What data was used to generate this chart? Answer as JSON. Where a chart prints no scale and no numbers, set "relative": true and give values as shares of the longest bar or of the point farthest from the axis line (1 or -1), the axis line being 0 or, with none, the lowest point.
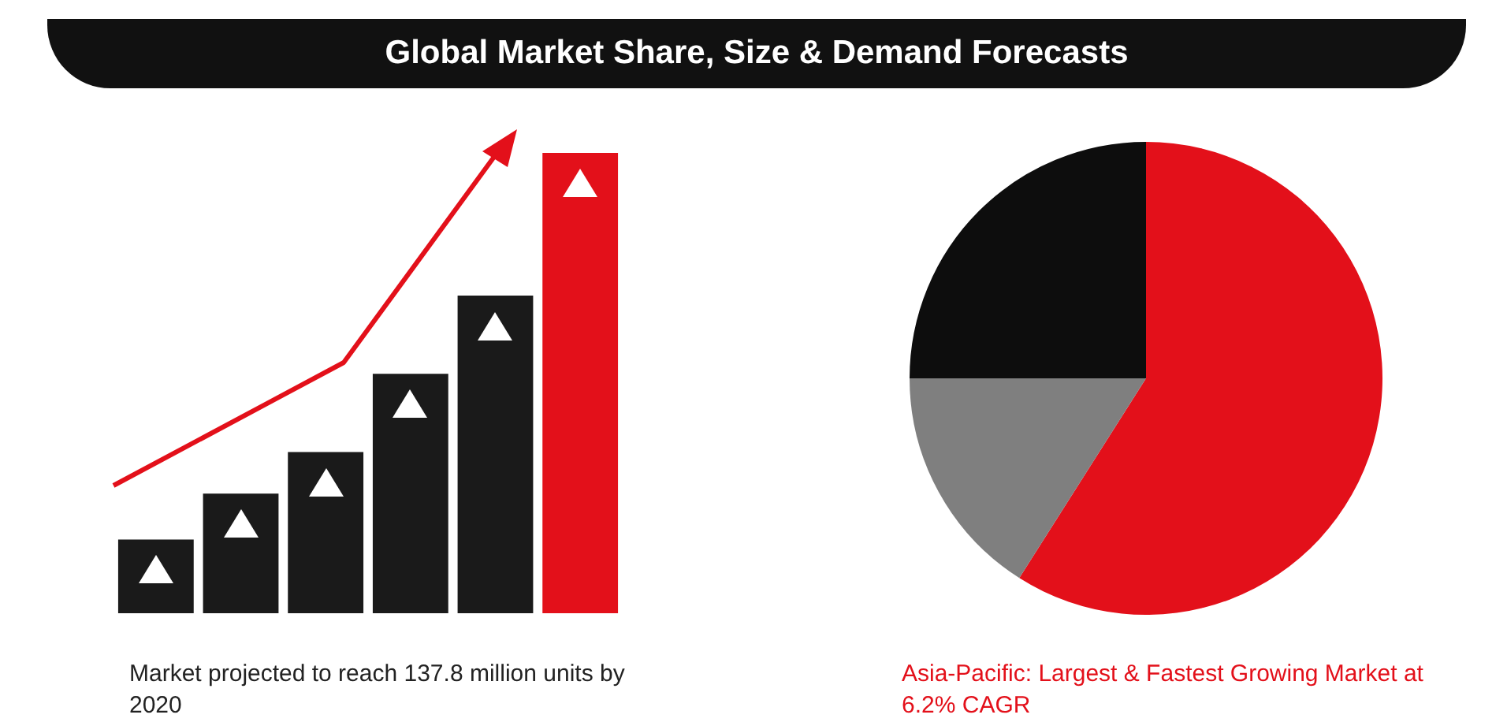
{
  "chart_data": [
    {
      "type": "bar",
      "title": "Global Market Share, Size & Demand Forecasts",
      "relative": true,
      "categories": [
        null,
        null,
        null,
        null,
        null,
        null
      ],
      "values": [
        0.16,
        0.26,
        0.35,
        0.52,
        0.69,
        1
      ],
      "colors": [
        "#1a1a1a",
        "#1a1a1a",
        "#1a1a1a",
        "#1a1a1a",
        "#1a1a1a",
        "#e3101a"
      ],
      "legend": false,
      "annotations": [
        "Market projected to reach 137.8 million units by 2020"
      ]
    },
    {
      "type": "pie",
      "categories": [
        null,
        null,
        null
      ],
      "values": [
        59,
        16,
        25
      ],
      "colors": [
        "#e3101a",
        "#7f7f7f",
        "#0d0d0d"
      ],
      "legend": false,
      "annotations": [
        "Asia-Pacific: Largest & Fastest Growing Market at 6.2% CAGR"
      ]
    }
  ]
}
